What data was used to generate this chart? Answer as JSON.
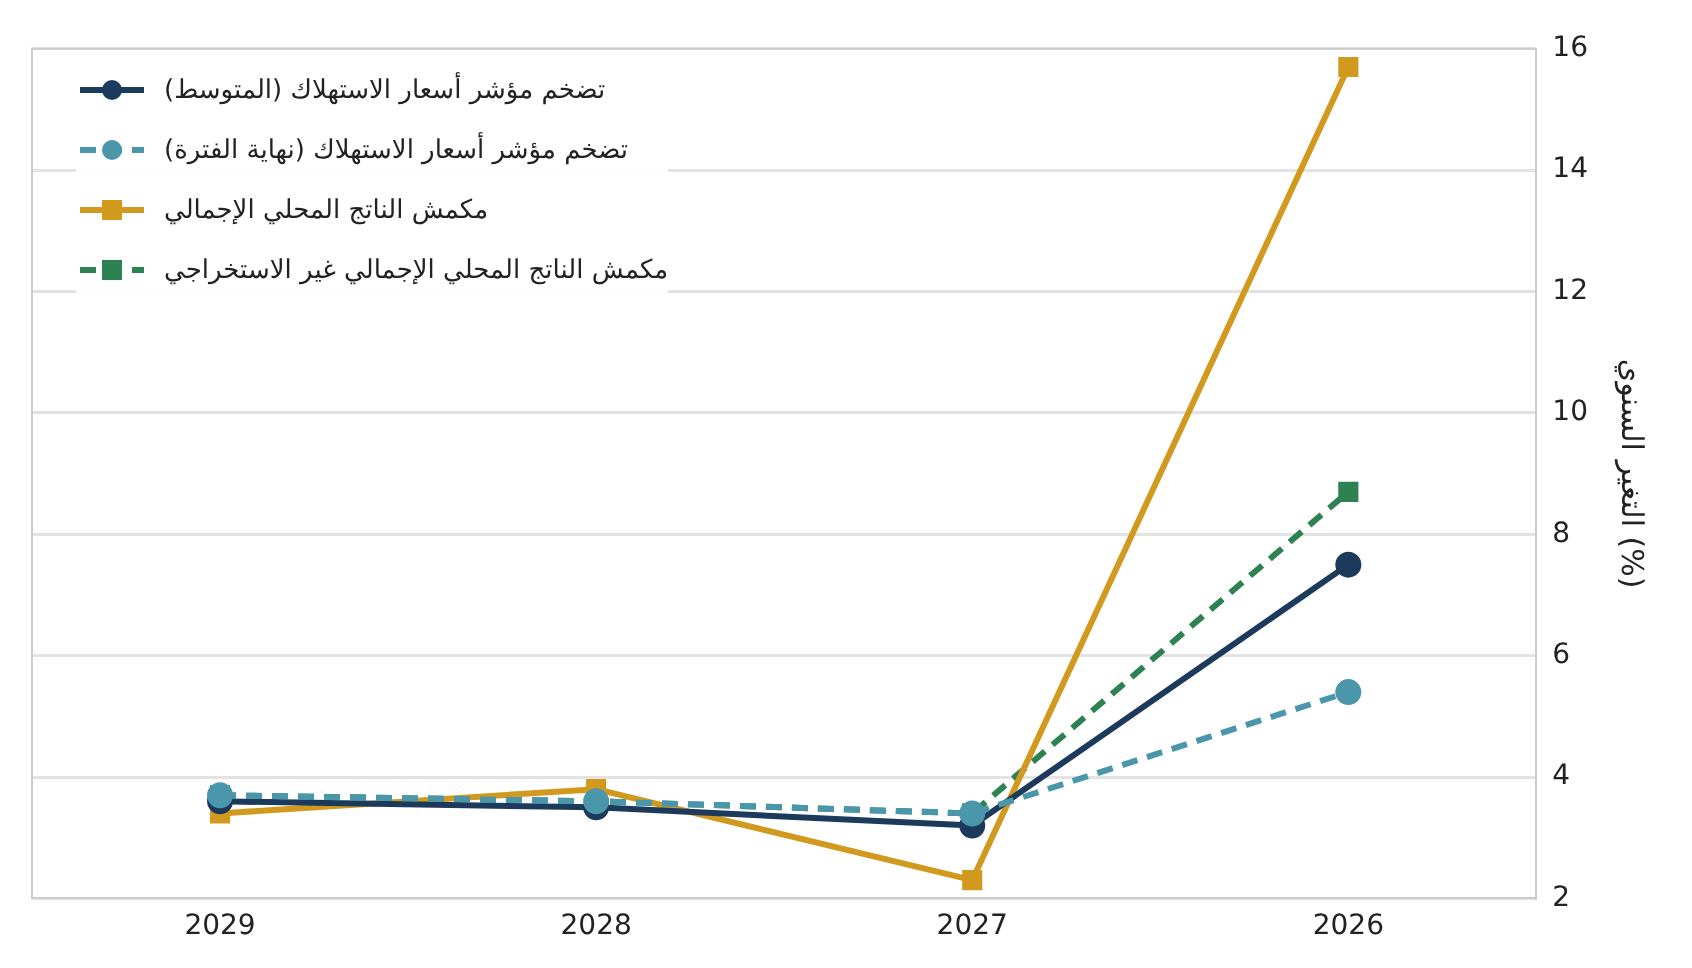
{
  "chart_data": {
    "type": "line",
    "ylabel": "التغير السنوي (%)",
    "categories": [
      "2029",
      "2028",
      "2027",
      "2026"
    ],
    "ylim": [
      2,
      16
    ],
    "yticks": [
      2,
      4,
      6,
      8,
      10,
      12,
      14,
      16
    ],
    "grid": "y",
    "legend": "top left",
    "series": [
      {
        "name": "تضخم مؤشر أسعار الاستهلاك (المتوسط)",
        "color": "#1b3a5c",
        "values": [
          3.6,
          3.5,
          3.2,
          7.5
        ],
        "marker": "circle",
        "line_style": "solid"
      },
      {
        "name": "تضخم مؤشر أسعار الاستهلاك (نهاية الفترة)",
        "color": "#4a97ab",
        "values": [
          3.7,
          3.6,
          3.4,
          5.4
        ],
        "marker": "circle",
        "line_style": "dashed"
      },
      {
        "name": "مكمش الناتج المحلي الإجمالي",
        "color": "#d19a1f",
        "values": [
          3.4,
          3.8,
          2.3,
          15.7
        ],
        "marker": "square",
        "line_style": "solid"
      },
      {
        "name": "مكمش الناتج المحلي الإجمالي غير الاستخراجي",
        "color": "#2e8150",
        "values": [
          3.7,
          3.6,
          3.4,
          8.7
        ],
        "marker": "square",
        "line_style": "dashed"
      }
    ]
  }
}
